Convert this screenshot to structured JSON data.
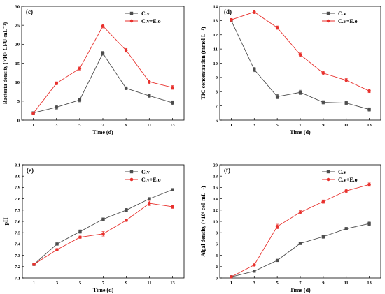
{
  "colors": {
    "cv": "#4d4d4d",
    "cveo": "#e8312d",
    "axis": "#000000"
  },
  "series_names": [
    "C.v",
    "C.v+E.o"
  ],
  "chart_data": [
    {
      "id": "c",
      "panel_label": "(c)",
      "type": "line",
      "xlabel": "Time (d)",
      "ylabel": "Bacteria density (×10⁵ CFU·mL⁻¹)",
      "x": [
        1,
        3,
        5,
        7,
        9,
        11,
        13
      ],
      "xticks": [
        1,
        3,
        5,
        7,
        9,
        11,
        13
      ],
      "xlim": [
        0,
        14
      ],
      "ylim": [
        0,
        30
      ],
      "yticks": [
        0,
        5,
        10,
        15,
        20,
        25,
        30
      ],
      "ytick_labels": [
        "0",
        "5",
        "10",
        "15",
        "20",
        "25",
        "30"
      ],
      "legend_position": "top-right",
      "series": [
        {
          "name": "C.v",
          "color": "#4d4d4d",
          "marker": "square",
          "values": [
            1.9,
            3.4,
            5.3,
            17.6,
            8.4,
            6.4,
            4.6
          ],
          "errors": [
            0.3,
            0.5,
            0.5,
            0.5,
            0.4,
            0.4,
            0.5
          ]
        },
        {
          "name": "C.v+E.o",
          "color": "#e8312d",
          "marker": "circle",
          "values": [
            1.8,
            9.7,
            13.6,
            24.8,
            18.4,
            10.1,
            8.6
          ],
          "errors": [
            0.3,
            0.4,
            0.4,
            0.5,
            0.5,
            0.5,
            0.5
          ]
        }
      ]
    },
    {
      "id": "d",
      "panel_label": "(d)",
      "type": "line",
      "xlabel": "Time (d)",
      "ylabel": "TIC concentration (mmol L⁻¹)",
      "x": [
        1,
        3,
        5,
        7,
        9,
        11,
        13
      ],
      "xticks": [
        1,
        3,
        5,
        7,
        9,
        11,
        13
      ],
      "xlim": [
        0,
        14
      ],
      "ylim": [
        6,
        14
      ],
      "yticks": [
        6,
        7,
        8,
        9,
        10,
        11,
        12,
        13,
        14
      ],
      "ytick_labels": [
        "6",
        "7",
        "8",
        "9",
        "10",
        "11",
        "12",
        "13",
        "14"
      ],
      "legend_position": "top-right",
      "series": [
        {
          "name": "C.v",
          "color": "#4d4d4d",
          "marker": "square",
          "values": [
            13.0,
            9.55,
            7.65,
            7.95,
            7.25,
            7.2,
            6.75
          ],
          "errors": [
            0.1,
            0.15,
            0.15,
            0.15,
            0.12,
            0.12,
            0.12
          ]
        },
        {
          "name": "C.v+E.o",
          "color": "#e8312d",
          "marker": "circle",
          "values": [
            13.05,
            13.6,
            12.5,
            10.6,
            9.3,
            8.8,
            8.05
          ],
          "errors": [
            0.1,
            0.12,
            0.12,
            0.12,
            0.12,
            0.12,
            0.12
          ]
        }
      ]
    },
    {
      "id": "e",
      "panel_label": "(e)",
      "type": "line",
      "xlabel": "Time (d)",
      "ylabel": "pH",
      "x": [
        1,
        3,
        5,
        7,
        9,
        11,
        13
      ],
      "xticks": [
        1,
        3,
        5,
        7,
        9,
        11,
        13
      ],
      "xlim": [
        0,
        14
      ],
      "ylim": [
        7.1,
        8.1
      ],
      "yticks": [
        7.1,
        7.2,
        7.3,
        7.4,
        7.5,
        7.6,
        7.7,
        7.8,
        7.9,
        8.0,
        8.1
      ],
      "ytick_labels": [
        "7.1",
        "7.2",
        "7.3",
        "7.4",
        "7.5",
        "7.6",
        "7.7",
        "7.8",
        "7.9",
        "8.0",
        "8.1"
      ],
      "legend_position": "top-right",
      "series": [
        {
          "name": "C.v",
          "color": "#4d4d4d",
          "marker": "square",
          "values": [
            7.22,
            7.4,
            7.51,
            7.62,
            7.7,
            7.8,
            7.88
          ],
          "errors": [
            0.01,
            0.01,
            0.015,
            0.01,
            0.015,
            0.01,
            0.01
          ]
        },
        {
          "name": "C.v+E.o",
          "color": "#e8312d",
          "marker": "circle",
          "values": [
            7.22,
            7.35,
            7.46,
            7.49,
            7.61,
            7.76,
            7.73
          ],
          "errors": [
            0.01,
            0.01,
            0.01,
            0.02,
            0.01,
            0.02,
            0.015
          ]
        }
      ]
    },
    {
      "id": "f",
      "panel_label": "(f)",
      "type": "line",
      "xlabel": "Time (d)",
      "ylabel": "Algal density (×10⁶ cell mL⁻¹)",
      "x": [
        1,
        3,
        5,
        7,
        9,
        11,
        13
      ],
      "xticks": [
        1,
        3,
        5,
        7,
        9,
        11,
        13
      ],
      "xlim": [
        0,
        14
      ],
      "ylim": [
        0,
        20
      ],
      "yticks": [
        0,
        2,
        4,
        6,
        8,
        10,
        12,
        14,
        16,
        18,
        20
      ],
      "ytick_labels": [
        "0",
        "2",
        "4",
        "6",
        "8",
        "10",
        "12",
        "14",
        "16",
        "18",
        "20"
      ],
      "legend_position": "top-right",
      "series": [
        {
          "name": "C.v",
          "color": "#4d4d4d",
          "marker": "square",
          "values": [
            0.2,
            1.2,
            3.1,
            6.1,
            7.3,
            8.7,
            9.6
          ],
          "errors": [
            0.1,
            0.15,
            0.15,
            0.2,
            0.3,
            0.25,
            0.3
          ]
        },
        {
          "name": "C.v+E.o",
          "color": "#e8312d",
          "marker": "circle",
          "values": [
            0.2,
            2.3,
            9.1,
            11.6,
            13.5,
            15.4,
            16.5
          ],
          "errors": [
            0.1,
            0.15,
            0.4,
            0.3,
            0.3,
            0.3,
            0.3
          ]
        }
      ]
    }
  ]
}
